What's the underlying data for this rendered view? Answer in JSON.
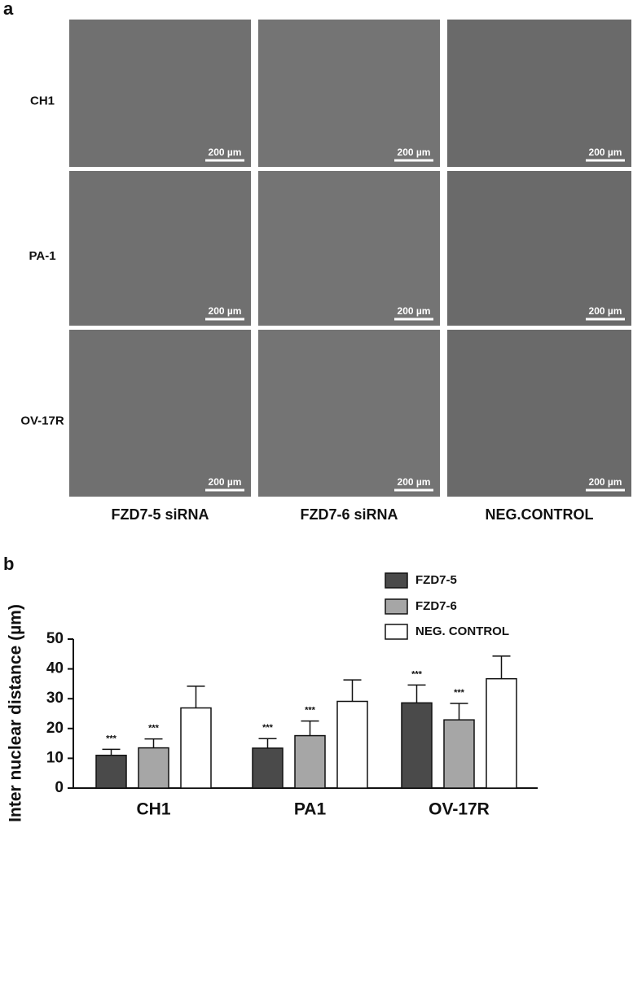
{
  "panel_a": {
    "label": "a",
    "rows": [
      "CH1",
      "PA-1",
      "OV-17R"
    ],
    "columns": [
      "FZD7-5 siRNA",
      "FZD7-6 siRNA",
      "NEG.CONTROL"
    ],
    "scale_bar": "200 µm"
  },
  "chart_data": {
    "type": "bar",
    "panel_label": "b",
    "ylabel": "Inter nuclear distance (µm)",
    "categories": [
      "CH1",
      "PA1",
      "OV-17R"
    ],
    "series": [
      {
        "name": "FZD7-5",
        "color": "#4a4a4a",
        "values": [
          11,
          13.4,
          28.6
        ],
        "errors": [
          2,
          3.2,
          6
        ],
        "annotations": [
          "***",
          "***",
          "***"
        ]
      },
      {
        "name": "FZD7-6",
        "color": "#a6a6a6",
        "values": [
          13.5,
          17.6,
          22.9
        ],
        "errors": [
          3,
          4.9,
          5.5
        ],
        "annotations": [
          "***",
          "***",
          "***"
        ]
      },
      {
        "name": "NEG. CONTROL",
        "color": "#ffffff",
        "values": [
          26.9,
          29.1,
          36.7
        ],
        "errors": [
          7.3,
          7.2,
          7.6
        ]
      }
    ],
    "ylim": [
      0,
      50
    ],
    "yticks": [
      0,
      10,
      20,
      30,
      40,
      50
    ]
  }
}
